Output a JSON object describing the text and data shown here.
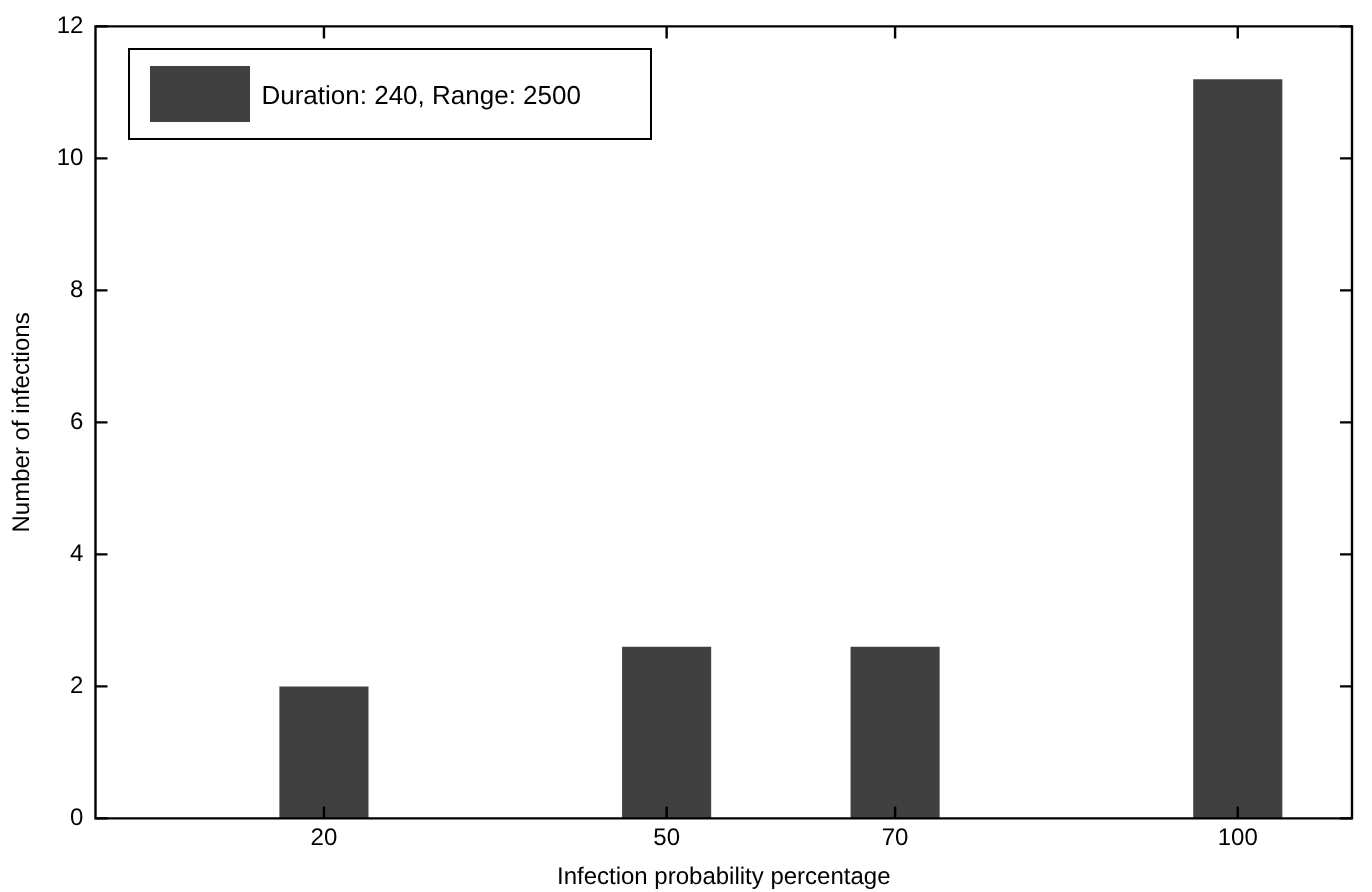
{
  "chart_data": {
    "type": "bar",
    "xlabel": "Infection probability percentage",
    "ylabel": "Number of infections",
    "x": [
      20,
      50,
      70,
      100
    ],
    "series": [
      {
        "name": "Duration: 240, Range: 2500",
        "color": "#404040",
        "values": [
          2.0,
          2.6,
          2.6,
          11.2
        ]
      }
    ],
    "xlim": [
      0,
      110
    ],
    "xticks": [
      20,
      50,
      70,
      100
    ],
    "ylim": [
      0,
      12
    ],
    "yticks": [
      0,
      2,
      4,
      6,
      8,
      10,
      12
    ],
    "grid": false,
    "legend": "top left"
  }
}
